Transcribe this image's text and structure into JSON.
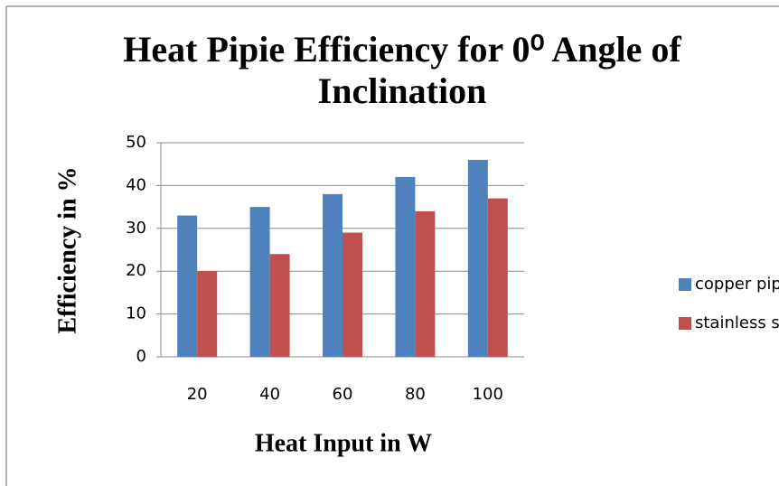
{
  "chart_data": {
    "type": "bar",
    "title": "Heat Pipie Efficiency for 0⁰ Angle of Inclination",
    "x_label": "Heat Input in W",
    "y_label": "Efficiency in %",
    "categories": [
      "20",
      "40",
      "60",
      "80",
      "100"
    ],
    "series": [
      {
        "name": "copper pipe",
        "color": "#4f81bd",
        "values": [
          33,
          35,
          38,
          42,
          46
        ]
      },
      {
        "name": "stainless steel pipe",
        "color": "#c0504d",
        "values": [
          20,
          24,
          29,
          34,
          37
        ]
      }
    ],
    "ylim": [
      0,
      50
    ],
    "yticks": [
      0,
      10,
      20,
      30,
      40,
      50
    ],
    "grid": true,
    "legend": "right"
  }
}
